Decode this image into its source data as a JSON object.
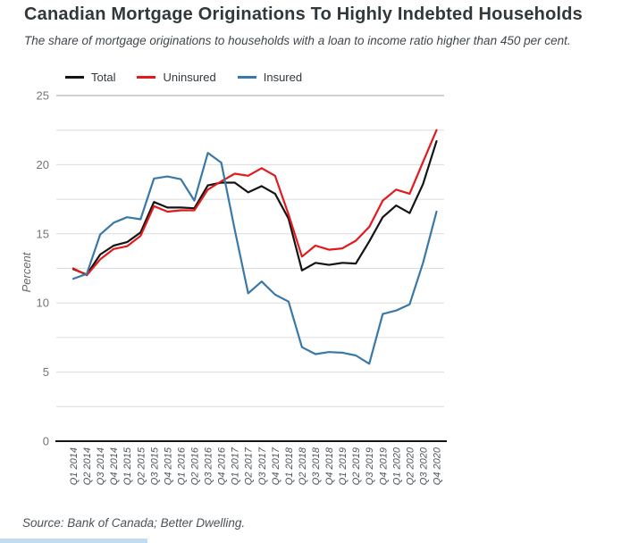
{
  "page": {
    "title": "Canadian Mortgage Originations To Highly Indebted Households",
    "subtitle": "The share of mortgage originations to households with a loan to income ratio higher than 450 per cent.",
    "source": "Source: Bank of Canada; Better Dwelling."
  },
  "chart_data": {
    "type": "line",
    "title": "Canadian Mortgage Originations To Highly Indebted Households",
    "xlabel": "",
    "ylabel": "Percent",
    "ylim": [
      0,
      25
    ],
    "y_ticks": [
      0,
      5,
      10,
      15,
      20,
      25
    ],
    "grid_step": 2.5,
    "grid": "on",
    "legend_position": "top",
    "colors": {
      "total": "#141414",
      "uninsured": "#e31a1c",
      "insured": "#3a78a7",
      "gridline": "#dcdcdc",
      "axis_top": "#a3a3a3",
      "axis_bottom": "#141414"
    },
    "categories": [
      "Q1 2014",
      "Q2 2014",
      "Q3 2014",
      "Q4 2014",
      "Q1 2015",
      "Q2 2015",
      "Q3 2015",
      "Q4 2015",
      "Q1 2016",
      "Q2 2016",
      "Q3 2016",
      "Q4 2016",
      "Q1 2017",
      "Q2 2017",
      "Q3 2017",
      "Q4 2017",
      "Q1 2018",
      "Q2 2018",
      "Q3 2018",
      "Q4 2018",
      "Q1 2019",
      "Q2 2019",
      "Q3 2019",
      "Q4 2019",
      "Q1 2020",
      "Q2 2020",
      "Q3 2020",
      "Q4 2020"
    ],
    "series": [
      {
        "name": "Total",
        "color": "#141414",
        "values": [
          12.45,
          12.05,
          13.5,
          14.15,
          14.4,
          15.1,
          17.3,
          16.9,
          16.9,
          16.85,
          18.5,
          18.7,
          18.7,
          18.0,
          18.45,
          17.9,
          16.1,
          12.35,
          12.9,
          12.75,
          12.9,
          12.85,
          14.45,
          16.2,
          17.05,
          16.5,
          18.6,
          21.7
        ]
      },
      {
        "name": "Uninsured",
        "color": "#e31a1c",
        "values": [
          12.5,
          12.0,
          13.15,
          13.9,
          14.1,
          14.85,
          17.0,
          16.6,
          16.7,
          16.7,
          18.2,
          18.8,
          19.35,
          19.2,
          19.75,
          19.2,
          16.4,
          13.35,
          14.15,
          13.85,
          13.95,
          14.5,
          15.5,
          17.4,
          18.2,
          17.9,
          20.2,
          22.5
        ]
      },
      {
        "name": "Insured",
        "color": "#3a78a7",
        "values": [
          11.75,
          12.1,
          14.95,
          15.8,
          16.2,
          16.05,
          19.0,
          19.15,
          18.95,
          17.4,
          20.85,
          20.15,
          15.3,
          10.7,
          11.55,
          10.6,
          10.1,
          6.8,
          6.3,
          6.45,
          6.4,
          6.2,
          5.6,
          9.2,
          9.45,
          9.9,
          12.9,
          16.6
        ]
      }
    ]
  }
}
